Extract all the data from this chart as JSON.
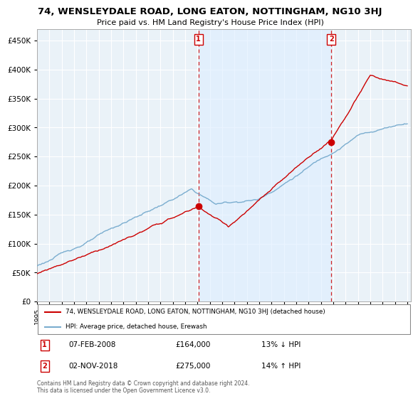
{
  "title": "74, WENSLEYDALE ROAD, LONG EATON, NOTTINGHAM, NG10 3HJ",
  "subtitle": "Price paid vs. HM Land Registry's House Price Index (HPI)",
  "ylim": [
    0,
    470000
  ],
  "yticks": [
    0,
    50000,
    100000,
    150000,
    200000,
    250000,
    300000,
    350000,
    400000,
    450000
  ],
  "sale1_year": 2008.08,
  "sale1_price": 164000,
  "sale1_label": "1",
  "sale2_year": 2018.84,
  "sale2_price": 275000,
  "sale2_label": "2",
  "red_line_color": "#cc0000",
  "blue_line_color": "#7aadcf",
  "shade_color": "#ddeeff",
  "background_color": "#eaf2f8",
  "grid_color": "#ffffff",
  "legend_entry1": "74, WENSLEYDALE ROAD, LONG EATON, NOTTINGHAM, NG10 3HJ (detached house)",
  "legend_entry2": "HPI: Average price, detached house, Erewash",
  "annotation1_date": "07-FEB-2008",
  "annotation1_price": "£164,000",
  "annotation1_hpi": "13% ↓ HPI",
  "annotation2_date": "02-NOV-2018",
  "annotation2_price": "£275,000",
  "annotation2_hpi": "14% ↑ HPI",
  "footer": "Contains HM Land Registry data © Crown copyright and database right 2024.\nThis data is licensed under the Open Government Licence v3.0."
}
